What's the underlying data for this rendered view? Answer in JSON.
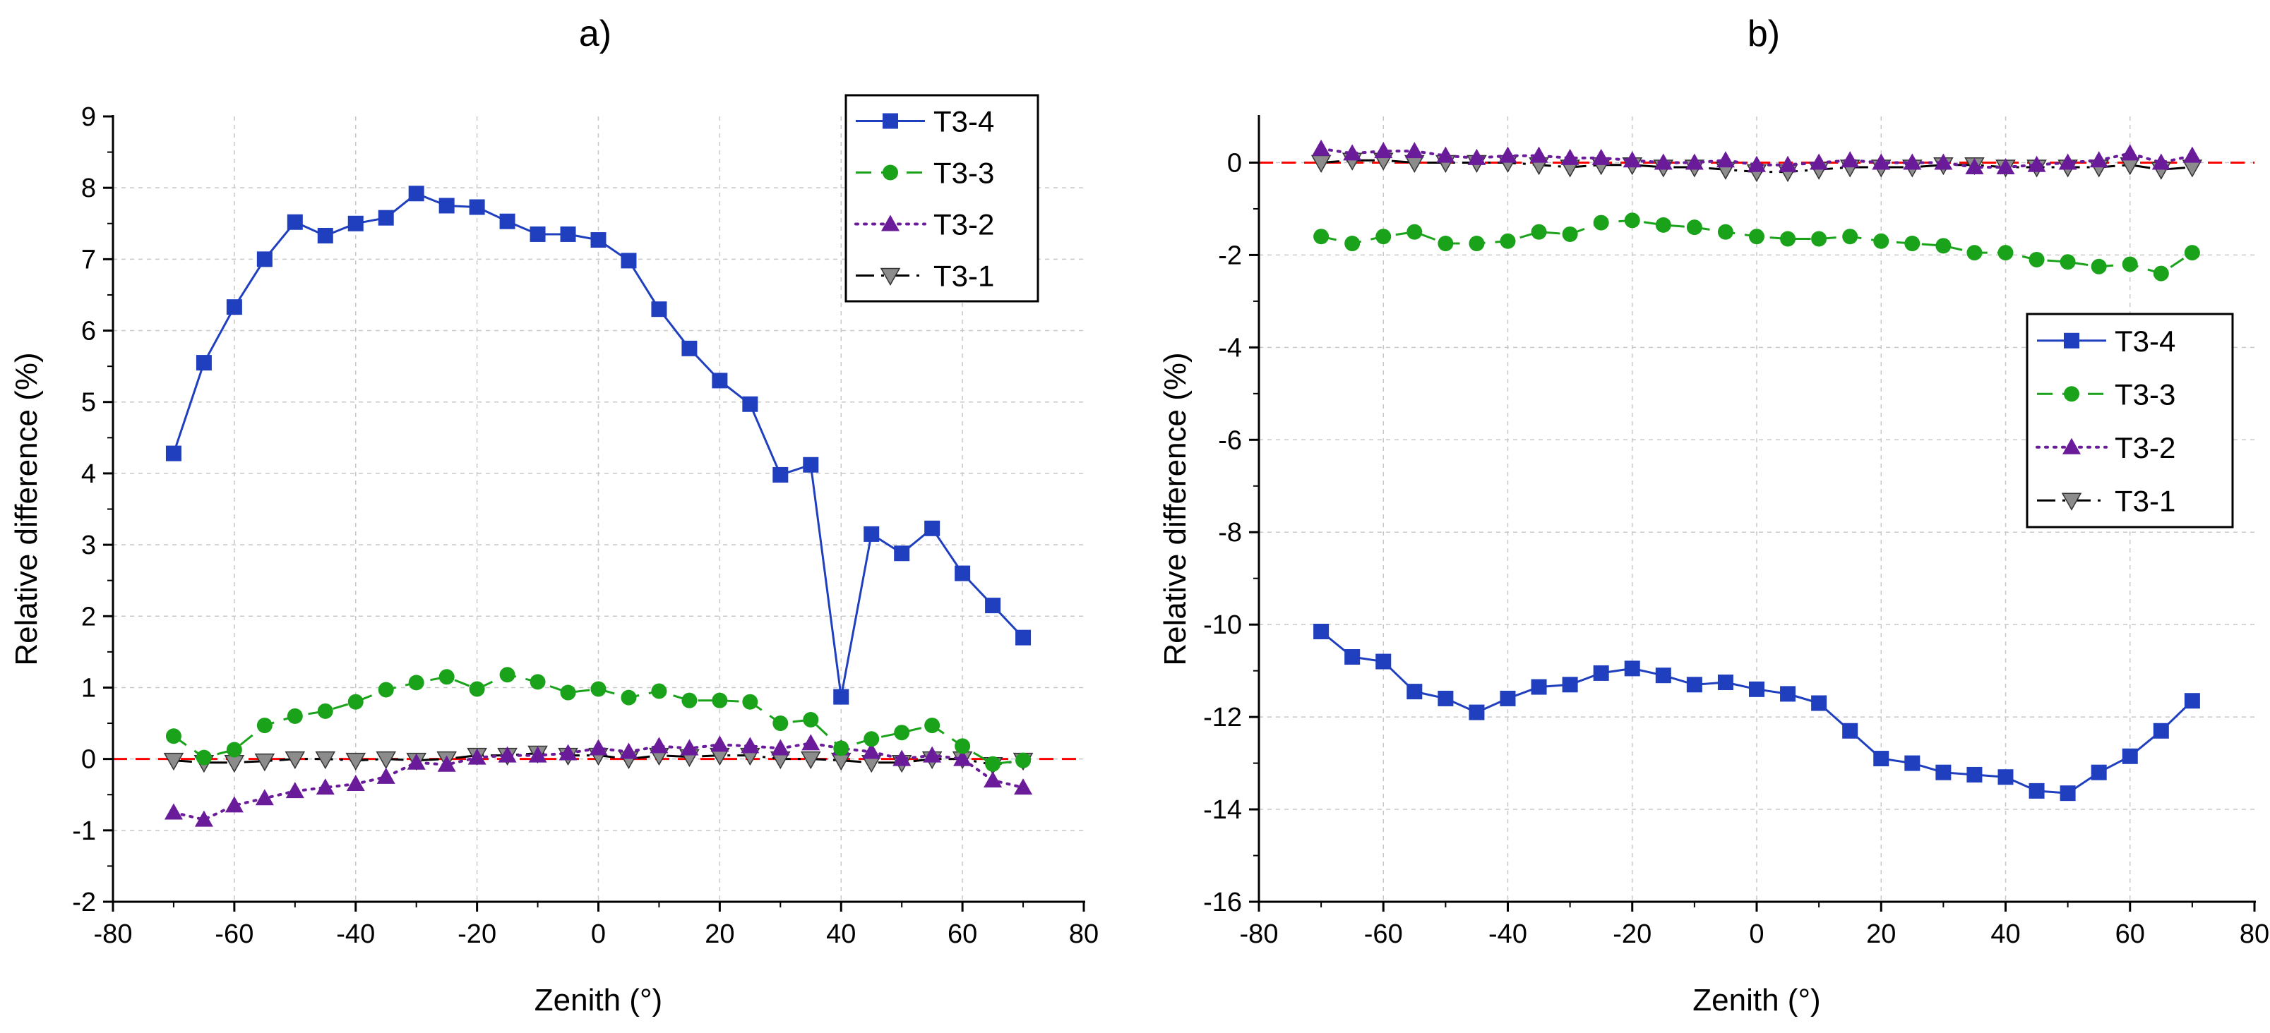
{
  "colors": {
    "t34": "#1f3fbf",
    "t33": "#1aa31a",
    "t32": "#6a1b9a",
    "t31": "#000000",
    "t31_marker": "#8c8c8c",
    "reference": "#ff0000",
    "grid": "#c8c8c8"
  },
  "chart_data": [
    {
      "panel_label": "a)",
      "type": "line",
      "xlabel": "Zenith (°)",
      "ylabel": "Relative difference (%)",
      "xlim": [
        -80,
        80
      ],
      "ylim": [
        -2,
        9
      ],
      "xticks": [
        -80,
        -60,
        -40,
        -20,
        0,
        20,
        40,
        60,
        80
      ],
      "yticks": [
        -2,
        -1,
        0,
        1,
        2,
        3,
        4,
        5,
        6,
        7,
        8,
        9
      ],
      "grid": true,
      "reference_line": 0,
      "legend_position": "top-right",
      "x": [
        -70,
        -65,
        -60,
        -55,
        -50,
        -45,
        -40,
        -35,
        -30,
        -25,
        -20,
        -15,
        -10,
        -5,
        0,
        5,
        10,
        15,
        20,
        25,
        30,
        35,
        40,
        45,
        50,
        55,
        60,
        65,
        70
      ],
      "series": [
        {
          "name": "T3-4",
          "line": "solid",
          "marker": "square",
          "color_key": "t34",
          "values": [
            4.28,
            5.55,
            6.33,
            7.0,
            7.52,
            7.33,
            7.5,
            7.58,
            7.92,
            7.75,
            7.73,
            7.53,
            7.35,
            7.35,
            7.27,
            6.98,
            6.3,
            5.75,
            5.3,
            4.97,
            3.98,
            4.12,
            0.87,
            3.15,
            2.88,
            3.23,
            2.6,
            2.15,
            1.7
          ]
        },
        {
          "name": "T3-3",
          "line": "dashed",
          "marker": "circle",
          "color_key": "t33",
          "values": [
            0.32,
            0.02,
            0.13,
            0.47,
            0.6,
            0.67,
            0.8,
            0.97,
            1.07,
            1.15,
            0.98,
            1.18,
            1.08,
            0.93,
            0.98,
            0.86,
            0.95,
            0.82,
            0.82,
            0.8,
            0.5,
            0.55,
            0.15,
            0.28,
            0.37,
            0.47,
            0.18,
            -0.07,
            -0.02
          ]
        },
        {
          "name": "T3-2",
          "line": "dotted",
          "marker": "triangle-up",
          "color_key": "t32",
          "values": [
            -0.75,
            -0.85,
            -0.65,
            -0.55,
            -0.45,
            -0.4,
            -0.35,
            -0.25,
            -0.05,
            -0.08,
            0.02,
            0.05,
            0.05,
            0.08,
            0.15,
            0.1,
            0.18,
            0.15,
            0.2,
            0.18,
            0.15,
            0.22,
            0.15,
            0.1,
            0.0,
            0.05,
            0.0,
            -0.3,
            -0.4
          ]
        },
        {
          "name": "T3-1",
          "line": "dashdot",
          "marker": "triangle-down",
          "color_key": "t31",
          "values": [
            -0.02,
            -0.05,
            -0.05,
            -0.03,
            0.0,
            0.0,
            -0.02,
            0.0,
            -0.02,
            0.0,
            0.05,
            0.05,
            0.08,
            0.05,
            0.05,
            0.0,
            0.05,
            0.03,
            0.05,
            0.05,
            0.0,
            0.0,
            -0.02,
            -0.05,
            -0.05,
            0.0,
            0.0,
            -0.08,
            -0.02
          ]
        }
      ]
    },
    {
      "panel_label": "b)",
      "type": "line",
      "xlabel": "Zenith (°)",
      "ylabel": "Relative difference (%)",
      "xlim": [
        -80,
        80
      ],
      "ylim": [
        -16,
        1
      ],
      "xticks": [
        -80,
        -60,
        -40,
        -20,
        0,
        20,
        40,
        60,
        80
      ],
      "yticks": [
        -16,
        -14,
        -12,
        -10,
        -8,
        -6,
        -4,
        -2,
        0
      ],
      "grid": true,
      "reference_line": 0,
      "legend_position": "middle-right",
      "x": [
        -70,
        -65,
        -60,
        -55,
        -50,
        -45,
        -40,
        -35,
        -30,
        -25,
        -20,
        -15,
        -10,
        -5,
        0,
        5,
        10,
        15,
        20,
        25,
        30,
        35,
        40,
        45,
        50,
        55,
        60,
        65,
        70
      ],
      "series": [
        {
          "name": "T3-4",
          "line": "solid",
          "marker": "square",
          "color_key": "t34",
          "values": [
            -10.15,
            -10.7,
            -10.8,
            -11.45,
            -11.6,
            -11.9,
            -11.6,
            -11.35,
            -11.3,
            -11.05,
            -10.95,
            -11.1,
            -11.3,
            -11.25,
            -11.4,
            -11.5,
            -11.7,
            -12.3,
            -12.9,
            -13.0,
            -13.2,
            -13.25,
            -13.3,
            -13.6,
            -13.65,
            -13.2,
            -12.85,
            -12.3,
            -11.65
          ]
        },
        {
          "name": "T3-3",
          "line": "dashed",
          "marker": "circle",
          "color_key": "t33",
          "values": [
            -1.6,
            -1.75,
            -1.6,
            -1.5,
            -1.75,
            -1.75,
            -1.7,
            -1.5,
            -1.55,
            -1.3,
            -1.25,
            -1.35,
            -1.4,
            -1.5,
            -1.6,
            -1.65,
            -1.65,
            -1.6,
            -1.7,
            -1.75,
            -1.8,
            -1.95,
            -1.95,
            -2.1,
            -2.15,
            -2.25,
            -2.2,
            -2.4,
            -1.95
          ]
        },
        {
          "name": "T3-2",
          "line": "dotted",
          "marker": "triangle-up",
          "color_key": "t32",
          "values": [
            0.3,
            0.2,
            0.25,
            0.25,
            0.15,
            0.1,
            0.15,
            0.15,
            0.1,
            0.1,
            0.05,
            0.0,
            0.0,
            0.05,
            -0.05,
            -0.05,
            0.0,
            0.05,
            0.0,
            0.0,
            0.0,
            -0.1,
            -0.1,
            -0.05,
            0.0,
            0.05,
            0.2,
            0.0,
            0.15
          ]
        },
        {
          "name": "T3-1",
          "line": "dashdot",
          "marker": "triangle-down",
          "color_key": "t31",
          "values": [
            0.0,
            0.05,
            0.05,
            0.0,
            0.0,
            0.0,
            0.0,
            -0.05,
            -0.1,
            -0.05,
            -0.05,
            -0.1,
            -0.1,
            -0.15,
            -0.2,
            -0.2,
            -0.15,
            -0.1,
            -0.1,
            -0.1,
            -0.05,
            -0.05,
            -0.1,
            -0.1,
            -0.1,
            -0.1,
            -0.05,
            -0.15,
            -0.1
          ]
        }
      ]
    }
  ]
}
